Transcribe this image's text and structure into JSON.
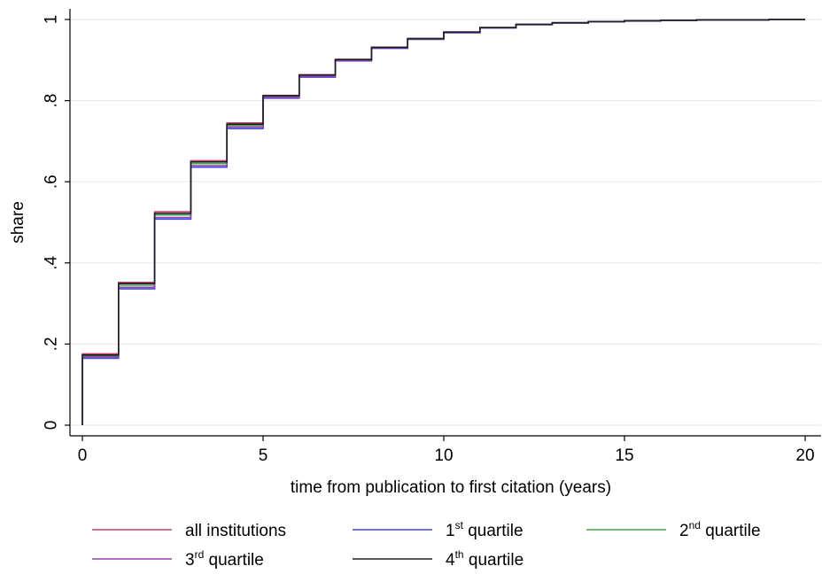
{
  "chart_data": {
    "type": "line",
    "step": true,
    "xlabel": "time from publication to first citation (years)",
    "ylabel": "share",
    "xlim": [
      0,
      20
    ],
    "ylim": [
      0,
      1
    ],
    "xticks": [
      0,
      5,
      10,
      15,
      20
    ],
    "xtick_labels": [
      "0",
      "5",
      "10",
      "15",
      "20"
    ],
    "yticks": [
      0,
      0.2,
      0.4,
      0.6,
      0.8,
      1
    ],
    "ytick_labels": [
      "0",
      ".2",
      ".4",
      ".6",
      ".8",
      "1"
    ],
    "grid": "horizontal",
    "legend_position": "bottom",
    "x": [
      0,
      1,
      2,
      3,
      4,
      5,
      6,
      7,
      8,
      9,
      10,
      11,
      12,
      13,
      14,
      15,
      16,
      17,
      18,
      19,
      20
    ],
    "series": [
      {
        "name_base": "all institutions",
        "name_sup": "",
        "name_suffix": "",
        "color": "#c8406e",
        "values": [
          0.176,
          0.352,
          0.526,
          0.652,
          0.745,
          0.813,
          0.864,
          0.902,
          0.932,
          0.953,
          0.969,
          0.98,
          0.988,
          0.992,
          0.995,
          0.997,
          0.998,
          0.999,
          0.999,
          1.0,
          1.0
        ]
      },
      {
        "name_base": "1",
        "name_sup": "st",
        "name_suffix": " quartile",
        "color": "#3e46dc",
        "values": [
          0.165,
          0.336,
          0.508,
          0.636,
          0.731,
          0.806,
          0.858,
          0.898,
          0.929,
          0.951,
          0.967,
          0.979,
          0.987,
          0.991,
          0.994,
          0.996,
          0.998,
          0.999,
          0.999,
          1.0,
          1.0
        ]
      },
      {
        "name_base": "2",
        "name_sup": "nd",
        "name_suffix": " quartile",
        "color": "#3aa84a",
        "values": [
          0.171,
          0.345,
          0.518,
          0.645,
          0.739,
          0.81,
          0.861,
          0.9,
          0.931,
          0.952,
          0.968,
          0.98,
          0.988,
          0.992,
          0.995,
          0.997,
          0.998,
          0.999,
          0.999,
          1.0,
          1.0
        ]
      },
      {
        "name_base": "3",
        "name_sup": "rd",
        "name_suffix": " quartile",
        "color": "#9a3fb0",
        "values": [
          0.168,
          0.34,
          0.512,
          0.64,
          0.735,
          0.808,
          0.86,
          0.899,
          0.93,
          0.952,
          0.968,
          0.98,
          0.988,
          0.992,
          0.995,
          0.997,
          0.998,
          0.999,
          0.999,
          1.0,
          1.0
        ]
      },
      {
        "name_base": "4",
        "name_sup": "th",
        "name_suffix": " quartile",
        "color": "#1e1e1e",
        "values": [
          0.173,
          0.349,
          0.522,
          0.649,
          0.742,
          0.812,
          0.863,
          0.901,
          0.931,
          0.953,
          0.969,
          0.98,
          0.988,
          0.992,
          0.995,
          0.997,
          0.998,
          0.999,
          0.999,
          1.0,
          1.0
        ]
      }
    ]
  }
}
